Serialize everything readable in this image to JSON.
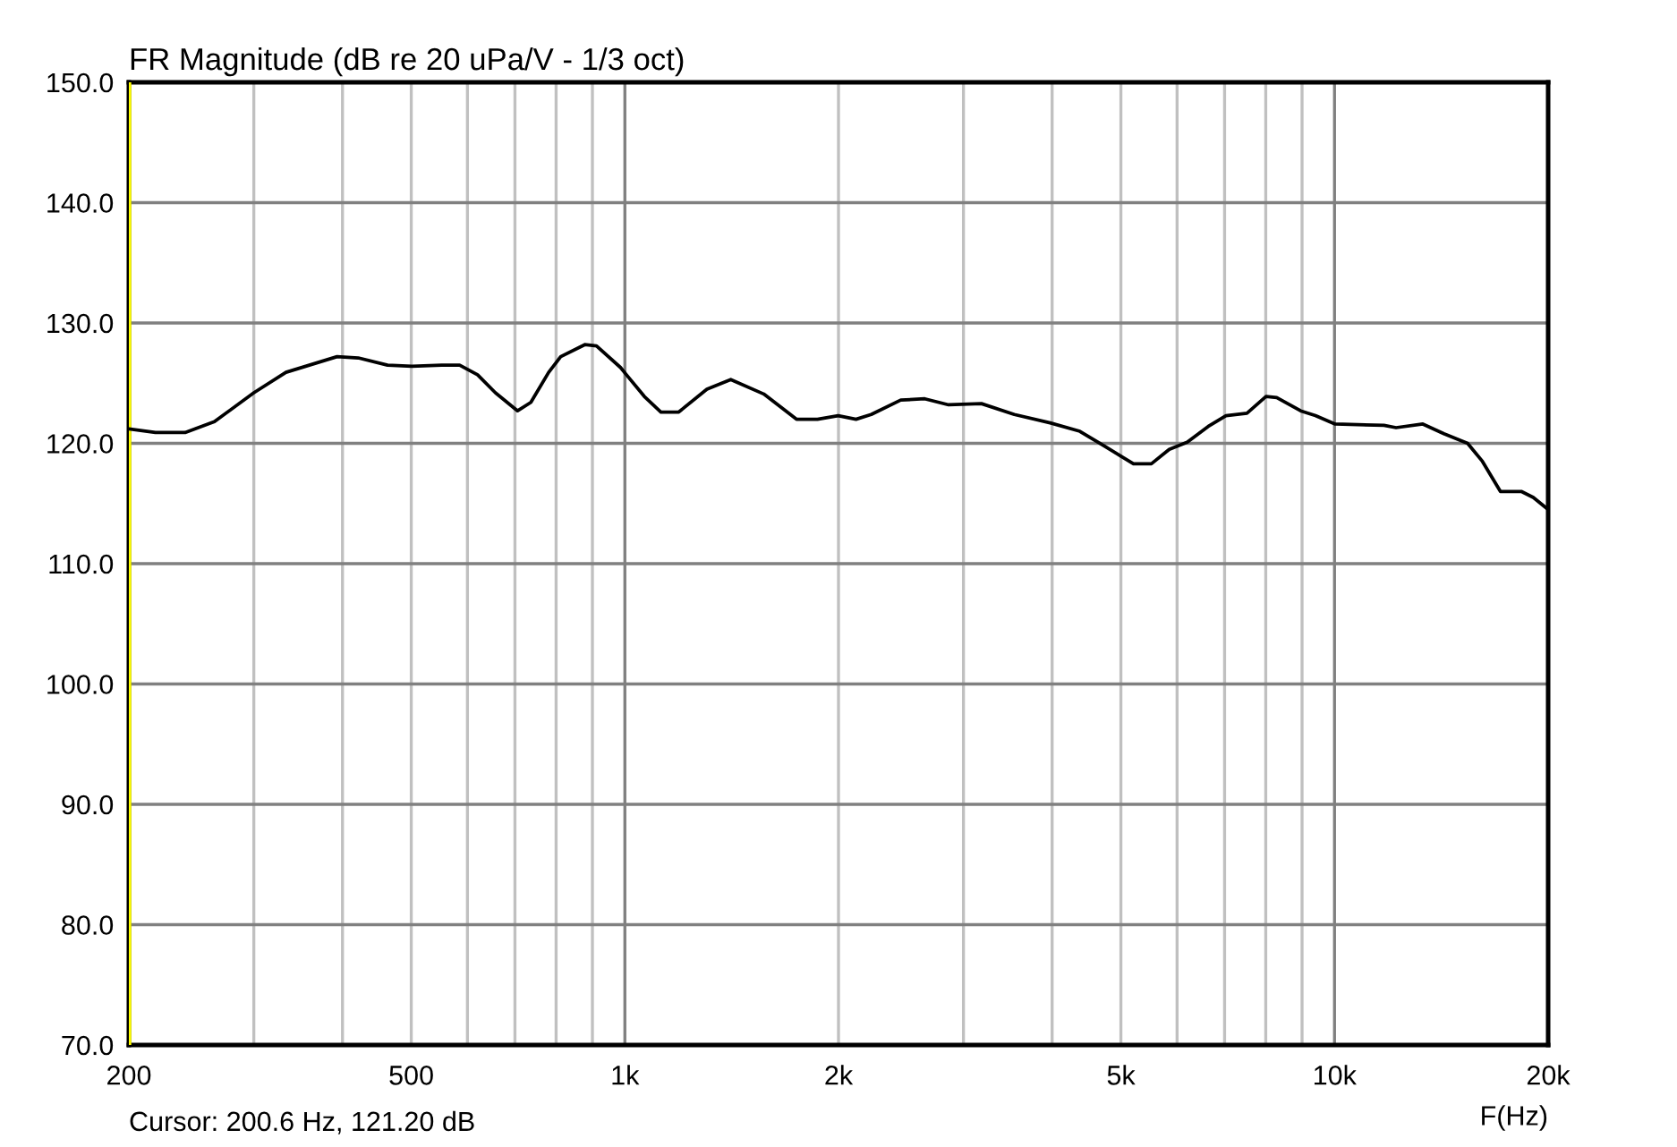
{
  "chart_data": {
    "type": "line",
    "title": "FR Magnitude (dB re 20 uPa/V - 1/3 oct)",
    "xlabel": "F(Hz)",
    "annotations": [
      "Cursor: 200.6 Hz, 121.20 dB"
    ],
    "x": [
      200,
      218,
      240,
      264,
      300,
      333,
      393,
      421,
      463,
      501,
      552,
      585,
      620,
      657,
      706,
      737,
      781,
      812,
      878,
      912,
      986,
      1005,
      1065,
      1124,
      1191,
      1305,
      1410,
      1569,
      1745,
      1868,
      1998,
      2117,
      2224,
      2448,
      2646,
      2859,
      3180,
      3538,
      3974,
      4376,
      4730,
      5012,
      5208,
      5520,
      5850,
      6200,
      6636,
      7032,
      7527,
      8007,
      8290,
      8960,
      9400,
      10020,
      11740,
      12210,
      13320,
      14260,
      15400,
      16160,
      17130,
      18330,
      19060,
      20000,
      20000
    ],
    "series": [
      {
        "color": "#000000",
        "values": [
          121.2,
          120.9,
          120.9,
          121.8,
          124.2,
          125.9,
          127.2,
          127.1,
          126.5,
          126.4,
          126.5,
          126.5,
          125.7,
          124.2,
          122.7,
          123.4,
          125.9,
          127.2,
          128.2,
          128.1,
          126.3,
          125.7,
          123.9,
          122.6,
          122.6,
          124.5,
          125.3,
          124.1,
          122.0,
          122.0,
          122.3,
          122.0,
          122.4,
          123.6,
          123.7,
          123.2,
          123.3,
          122.4,
          121.7,
          121.0,
          119.8,
          118.9,
          118.3,
          118.3,
          119.5,
          120.1,
          121.4,
          122.3,
          122.5,
          123.9,
          123.8,
          122.7,
          122.3,
          121.6,
          121.5,
          121.3,
          121.6,
          120.8,
          120.0,
          118.5,
          116.0,
          116.0,
          115.5,
          114.5,
          107.8
        ]
      }
    ],
    "log": "x",
    "xlim": [
      200,
      20000
    ],
    "ylim": [
      70,
      150
    ],
    "xticks": [
      200,
      {
        "value": 300,
        "label": null
      },
      {
        "value": 400,
        "label": null
      },
      500,
      {
        "value": 600,
        "label": null
      },
      {
        "value": 700,
        "label": null
      },
      {
        "value": 800,
        "label": null
      },
      {
        "value": 900,
        "label": null
      },
      {
        "value": 1000,
        "label": "1k"
      },
      {
        "value": 2000,
        "label": "2k"
      },
      {
        "value": 3000,
        "label": null
      },
      {
        "value": 4000,
        "label": null
      },
      {
        "value": 5000,
        "label": "5k"
      },
      {
        "value": 6000,
        "label": null
      },
      {
        "value": 7000,
        "label": null
      },
      {
        "value": 8000,
        "label": null
      },
      {
        "value": 9000,
        "label": null
      },
      {
        "value": 10000,
        "label": "10k"
      },
      {
        "value": 20000,
        "label": "20k"
      }
    ],
    "yticks": [
      {
        "value": 70,
        "label": "70.0"
      },
      {
        "value": 80,
        "label": "80.0"
      },
      {
        "value": 90,
        "label": "90.0"
      },
      {
        "value": 100,
        "label": "100.0"
      },
      {
        "value": 110,
        "label": "110.0"
      },
      {
        "value": 120,
        "label": "120.0"
      },
      {
        "value": 130,
        "label": "130.0"
      },
      {
        "value": 140,
        "label": "140.0"
      },
      {
        "value": 150,
        "label": "150.0"
      }
    ],
    "ref_lines": [
      {
        "axis": "x",
        "value": 200.6,
        "color": "#ffff00"
      }
    ],
    "grid": true,
    "marker": "none",
    "line_style": "solid"
  }
}
